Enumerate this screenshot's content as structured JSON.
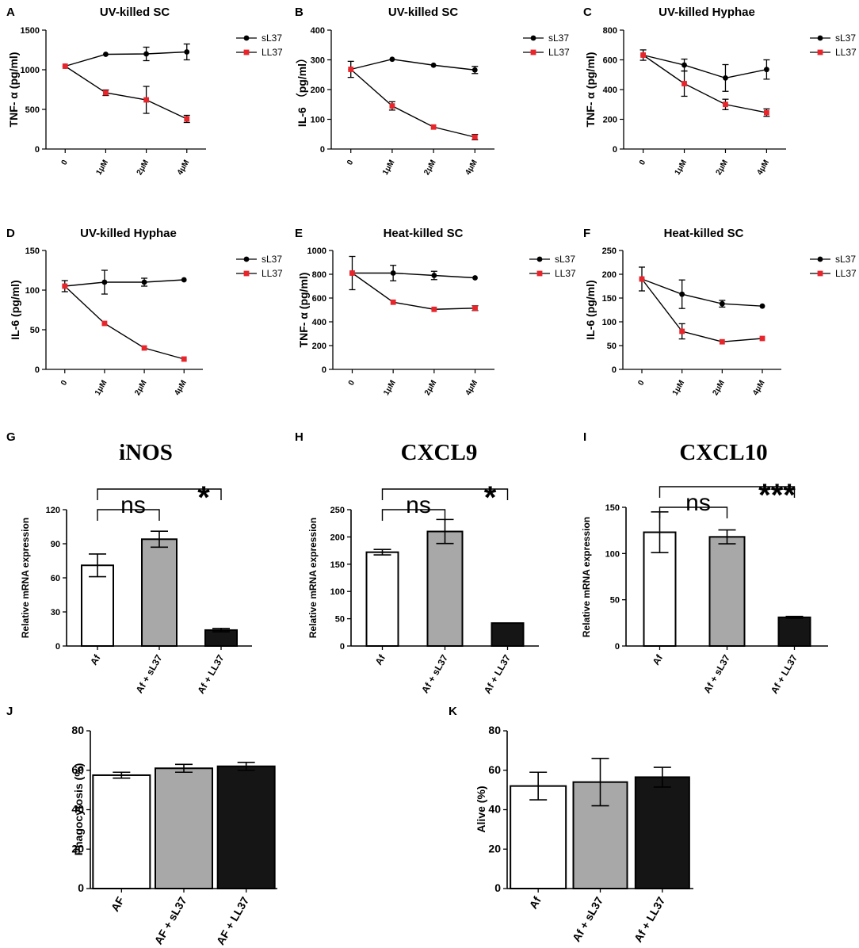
{
  "figure": {
    "background": "#ffffff"
  },
  "colors": {
    "sL37": "#000000",
    "LL37": "#e8252b",
    "bar_white": "#ffffff",
    "bar_grey": "#a8a8a8",
    "bar_black": "#151515"
  },
  "chart_data": [
    {
      "id": "A",
      "label": "A",
      "type": "line",
      "title": "UV-killed SC",
      "ylabel": "TNF- α  (pg/ml)",
      "categories": [
        "0",
        "1μM",
        "2μM",
        "4μM"
      ],
      "ylim": [
        0,
        1500
      ],
      "yticks": [
        0,
        500,
        1000,
        1500
      ],
      "series": [
        {
          "name": "sL37",
          "values": [
            1045,
            1195,
            1200,
            1225
          ],
          "errors": [
            0,
            0,
            85,
            100
          ]
        },
        {
          "name": "LL37",
          "values": [
            1045,
            710,
            620,
            380
          ],
          "errors": [
            0,
            35,
            170,
            45
          ]
        }
      ]
    },
    {
      "id": "B",
      "label": "B",
      "type": "line",
      "title": "UV-killed SC",
      "ylabel": "IL-6 （pg/ml）",
      "categories": [
        "0",
        "1μM",
        "2μM",
        "4μM"
      ],
      "ylim": [
        0,
        400
      ],
      "yticks": [
        0,
        100,
        200,
        300,
        400
      ],
      "series": [
        {
          "name": "sL37",
          "values": [
            268,
            302,
            282,
            266
          ],
          "errors": [
            27,
            0,
            0,
            12
          ]
        },
        {
          "name": "LL37",
          "values": [
            268,
            145,
            74,
            40
          ],
          "errors": [
            0,
            14,
            0,
            9
          ]
        }
      ]
    },
    {
      "id": "C",
      "label": "C",
      "type": "line",
      "title": "UV-killed Hyphae",
      "ylabel": "TNF- α  (pg/ml)",
      "categories": [
        "0",
        "1μM",
        "2μM",
        "4μM"
      ],
      "ylim": [
        0,
        800
      ],
      "yticks": [
        0,
        200,
        400,
        600,
        800
      ],
      "series": [
        {
          "name": "sL37",
          "values": [
            632,
            565,
            478,
            535
          ],
          "errors": [
            35,
            40,
            90,
            65
          ]
        },
        {
          "name": "LL37",
          "values": [
            632,
            440,
            300,
            245
          ],
          "errors": [
            0,
            85,
            35,
            25
          ]
        }
      ]
    },
    {
      "id": "D",
      "label": "D",
      "type": "line",
      "title": "UV-killed Hyphae",
      "ylabel": "IL-6  (pg/ml)",
      "categories": [
        "0",
        "1μM",
        "2μM",
        "4μM"
      ],
      "ylim": [
        0,
        150
      ],
      "yticks": [
        0,
        50,
        100,
        150
      ],
      "series": [
        {
          "name": "sL37",
          "values": [
            105,
            110,
            110,
            113
          ],
          "errors": [
            7,
            15,
            5,
            0
          ]
        },
        {
          "name": "LL37",
          "values": [
            105,
            58,
            27,
            13
          ],
          "errors": [
            0,
            0,
            0,
            0
          ]
        }
      ]
    },
    {
      "id": "E",
      "label": "E",
      "type": "line",
      "title": "Heat-killed SC",
      "ylabel": "TNF- α  (pg/ml)",
      "categories": [
        "0",
        "1μM",
        "2μM",
        "4μM"
      ],
      "ylim": [
        0,
        1000
      ],
      "yticks": [
        0,
        200,
        400,
        600,
        800,
        1000
      ],
      "series": [
        {
          "name": "sL37",
          "values": [
            810,
            810,
            790,
            770
          ],
          "errors": [
            140,
            65,
            35,
            0
          ]
        },
        {
          "name": "LL37",
          "values": [
            810,
            565,
            505,
            515
          ],
          "errors": [
            0,
            0,
            0,
            20
          ]
        }
      ]
    },
    {
      "id": "F",
      "label": "F",
      "type": "line",
      "title": "Heat-killed SC",
      "ylabel": "IL-6  (pg/ml)",
      "categories": [
        "0",
        "1μM",
        "2μM",
        "4μM"
      ],
      "ylim": [
        0,
        250
      ],
      "yticks": [
        0,
        50,
        100,
        150,
        200,
        250
      ],
      "series": [
        {
          "name": "sL37",
          "values": [
            190,
            158,
            138,
            133
          ],
          "errors": [
            25,
            30,
            7,
            0
          ]
        },
        {
          "name": "LL37",
          "values": [
            190,
            80,
            58,
            65
          ],
          "errors": [
            0,
            16,
            0,
            0
          ]
        }
      ]
    },
    {
      "id": "G",
      "label": "G",
      "type": "bar",
      "title": "iNOS",
      "ylabel": "Relative mRNA expression",
      "categories": [
        "Af",
        "Af + sL37",
        "Af + LL37"
      ],
      "ylim": [
        0,
        120
      ],
      "yticks": [
        0,
        30,
        60,
        90,
        120
      ],
      "values": [
        71,
        94,
        14
      ],
      "errors": [
        10,
        7,
        1.5
      ],
      "significance": [
        {
          "text": "ns",
          "from": 0,
          "to": 1
        },
        {
          "text": "*",
          "from": 0,
          "to": 2
        }
      ]
    },
    {
      "id": "H",
      "label": "H",
      "type": "bar",
      "title": "CXCL9",
      "ylabel": "Relative mRNA expression",
      "categories": [
        "Af",
        "Af + sL37",
        "Af + LL37"
      ],
      "ylim": [
        0,
        250
      ],
      "yticks": [
        0,
        50,
        100,
        150,
        200,
        250
      ],
      "values": [
        172,
        210,
        42
      ],
      "errors": [
        5,
        22,
        0
      ],
      "significance": [
        {
          "text": "ns",
          "from": 0,
          "to": 1
        },
        {
          "text": "*",
          "from": 0,
          "to": 2
        }
      ]
    },
    {
      "id": "I",
      "label": "I",
      "type": "bar",
      "title": "CXCL10",
      "ylabel": "Relative mRNA expression",
      "categories": [
        "Af",
        "Af + sL37",
        "Af + LL37"
      ],
      "ylim": [
        0,
        150
      ],
      "yticks": [
        0,
        50,
        100,
        150
      ],
      "values": [
        123,
        118,
        31
      ],
      "errors": [
        22,
        7.5,
        1
      ],
      "significance": [
        {
          "text": "ns",
          "from": 0,
          "to": 1
        },
        {
          "text": "***",
          "from": 0,
          "to": 2
        }
      ]
    },
    {
      "id": "J",
      "label": "J",
      "type": "bar",
      "title": "",
      "ylabel": "Phagocytosis (%)",
      "categories": [
        "AF",
        "AF + sL37",
        "AF + LL37"
      ],
      "ylim": [
        0,
        80
      ],
      "yticks": [
        0,
        20,
        40,
        60,
        80
      ],
      "values": [
        57.5,
        61,
        62
      ],
      "errors": [
        1.5,
        2,
        2
      ],
      "significance": []
    },
    {
      "id": "K",
      "label": "K",
      "type": "bar",
      "title": "",
      "ylabel": "Alive (%)",
      "categories": [
        "Af",
        "Af + sL37",
        "Af + LL37"
      ],
      "ylim": [
        0,
        80
      ],
      "yticks": [
        0,
        20,
        40,
        60,
        80
      ],
      "values": [
        52,
        54,
        56.5
      ],
      "errors": [
        7,
        12,
        5
      ],
      "significance": []
    }
  ]
}
